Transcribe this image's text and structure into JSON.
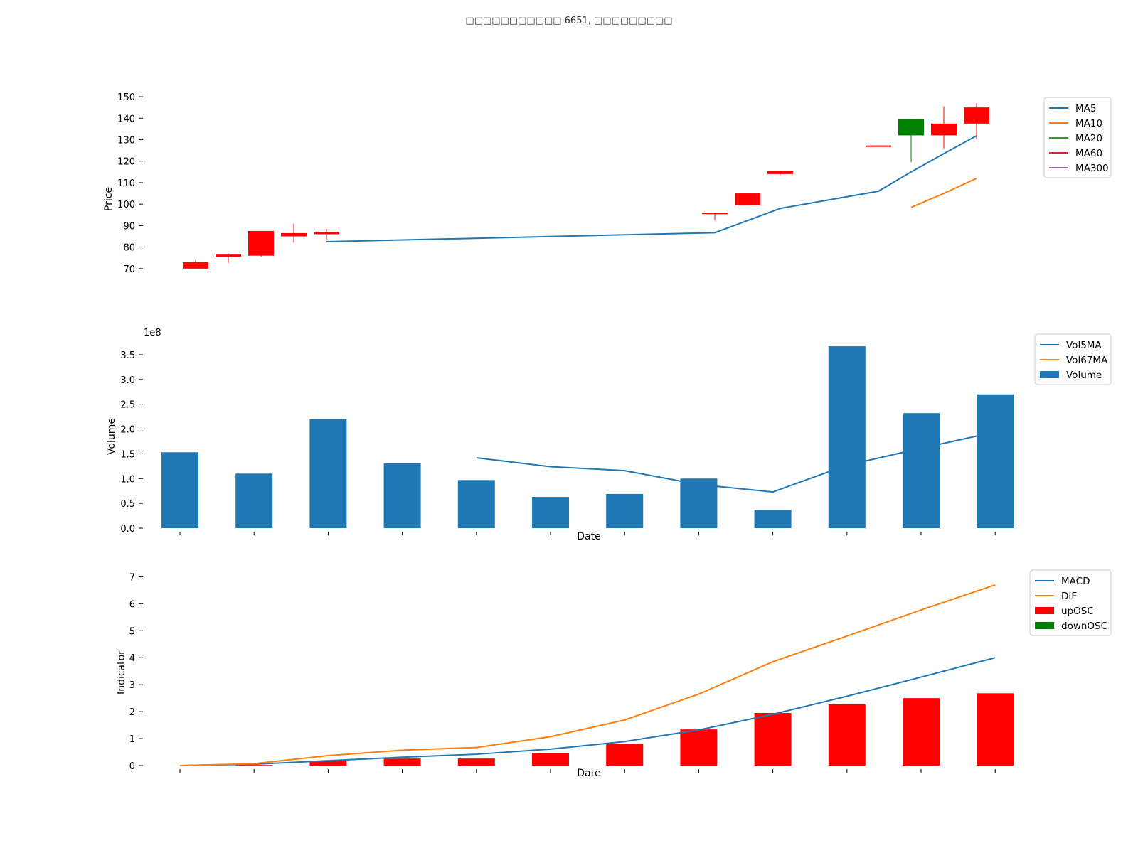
{
  "title": "□□□□□□□□□□□ 6651, □□□□□□□□□",
  "chart_data": [
    {
      "type": "candlestick",
      "ylabel": "Price",
      "ylim": [
        62,
        152
      ],
      "yticks": [
        70,
        80,
        90,
        100,
        110,
        120,
        130,
        140,
        150
      ],
      "x_index": [
        0,
        1,
        2,
        3,
        4,
        5,
        6,
        7,
        8,
        9,
        10,
        11
      ],
      "candles": [
        {
          "x": 0,
          "open": 70,
          "close": 73,
          "high": 74,
          "low": 70,
          "color": "#ff0000"
        },
        {
          "x": 1,
          "open": 75.5,
          "close": 76.5,
          "high": 77,
          "low": 72.5,
          "color": "#ff0000"
        },
        {
          "x": 2,
          "open": 76,
          "close": 87.5,
          "high": 87.5,
          "low": 75.5,
          "color": "#ff0000"
        },
        {
          "x": 3,
          "open": 85,
          "close": 86.5,
          "high": 91,
          "low": 82,
          "color": "#ff0000"
        },
        {
          "x": 4,
          "open": 86,
          "close": 87,
          "high": 88.5,
          "low": 83.5,
          "color": "#ff0000"
        },
        {
          "x": 5,
          "open": 95.5,
          "close": 96,
          "high": 96,
          "low": 92.5,
          "color": "#ff0000"
        },
        {
          "x": 6,
          "open": 99.5,
          "close": 105,
          "high": 105,
          "low": 99.5,
          "color": "#ff0000"
        },
        {
          "x": 7,
          "open": 114,
          "close": 115.5,
          "high": 115.5,
          "low": 113.5,
          "color": "#ff0000"
        },
        {
          "x": 8,
          "open": 127,
          "close": 127.3,
          "high": 127.3,
          "low": 127,
          "color": "#ff0000"
        },
        {
          "x": 9,
          "open": 139.5,
          "close": 132,
          "high": 139.5,
          "low": 119.5,
          "color": "#008000"
        },
        {
          "x": 10,
          "open": 132,
          "close": 137.5,
          "high": 145.5,
          "low": 126,
          "color": "#ff0000"
        },
        {
          "x": 11,
          "open": 137.5,
          "close": 145,
          "high": 147,
          "low": 130,
          "color": "#ff0000"
        }
      ],
      "series": [
        {
          "name": "MA5",
          "color": "#1f77b4",
          "x": [
            4,
            5,
            6,
            7,
            8,
            9,
            10,
            11
          ],
          "values": [
            82.5,
            86.7,
            89.0,
            98.0,
            106.0,
            115.0,
            123.5,
            131.8
          ]
        },
        {
          "name": "MA10",
          "color": "#ff7f0e",
          "x": [
            9,
            10,
            11
          ],
          "values": [
            98.5,
            105.0,
            112.0
          ]
        },
        {
          "name": "MA20",
          "color": "#2ca02c",
          "x": [],
          "values": []
        },
        {
          "name": "MA60",
          "color": "#d62728",
          "x": [],
          "values": []
        },
        {
          "name": "MA300",
          "color": "#9467bd",
          "x": [],
          "values": []
        }
      ],
      "legend": "top-right"
    },
    {
      "type": "bar",
      "ylabel": "Volume",
      "xlabel": "Date",
      "offset_text": "1e8",
      "ylim": [
        0,
        3.8
      ],
      "yticks": [
        "0.0",
        "0.5",
        "1.0",
        "1.5",
        "2.0",
        "2.5",
        "3.0",
        "3.5"
      ],
      "x_index": [
        0,
        1,
        2,
        3,
        4,
        5,
        6,
        7,
        8,
        9,
        10,
        11
      ],
      "values": [
        1.53,
        1.1,
        2.2,
        1.31,
        0.97,
        0.63,
        0.69,
        1.0,
        0.37,
        3.67,
        2.32,
        2.7
      ],
      "series": [
        {
          "name": "Vol5MA",
          "color": "#1f77b4",
          "x": [
            4,
            5,
            6,
            7,
            8,
            9,
            10,
            11
          ],
          "values": [
            1.42,
            1.24,
            1.16,
            0.88,
            0.73,
            1.27,
            1.61,
            1.94
          ]
        },
        {
          "name": "Vol67MA",
          "color": "#ff7f0e",
          "x": [],
          "values": []
        },
        {
          "name": "Volume",
          "color": "#1f77b4",
          "kind": "bar"
        }
      ],
      "legend": "top-right"
    },
    {
      "type": "bar",
      "ylabel": "Indicator",
      "xlabel": "Date",
      "ylim": [
        0,
        7.3
      ],
      "yticks": [
        "0",
        "1",
        "2",
        "3",
        "4",
        "5",
        "6",
        "7"
      ],
      "x_index": [
        0,
        1,
        2,
        3,
        4,
        5,
        6,
        7,
        8,
        9,
        10,
        11
      ],
      "osc": [
        0,
        0.02,
        0.18,
        0.26,
        0.26,
        0.47,
        0.81,
        1.34,
        1.95,
        2.27,
        2.5,
        2.68
      ],
      "series": [
        {
          "name": "MACD",
          "color": "#1f77b4",
          "x": [
            0,
            1,
            2,
            3,
            4,
            5,
            6,
            7,
            8,
            9,
            10,
            11
          ],
          "values": [
            0,
            0.05,
            0.18,
            0.31,
            0.42,
            0.61,
            0.89,
            1.32,
            1.9,
            2.57,
            3.28,
            4.0
          ]
        },
        {
          "name": "DIF",
          "color": "#ff7f0e",
          "x": [
            0,
            1,
            2,
            3,
            4,
            5,
            6,
            7,
            8,
            9,
            10,
            11
          ],
          "values": [
            0,
            0.07,
            0.37,
            0.57,
            0.67,
            1.07,
            1.69,
            2.65,
            3.85,
            4.8,
            5.77,
            6.7
          ]
        },
        {
          "name": "upOSC",
          "color": "#ff0000",
          "kind": "bar"
        },
        {
          "name": "downOSC",
          "color": "#008000",
          "kind": "bar"
        }
      ],
      "legend": "top-right"
    }
  ]
}
